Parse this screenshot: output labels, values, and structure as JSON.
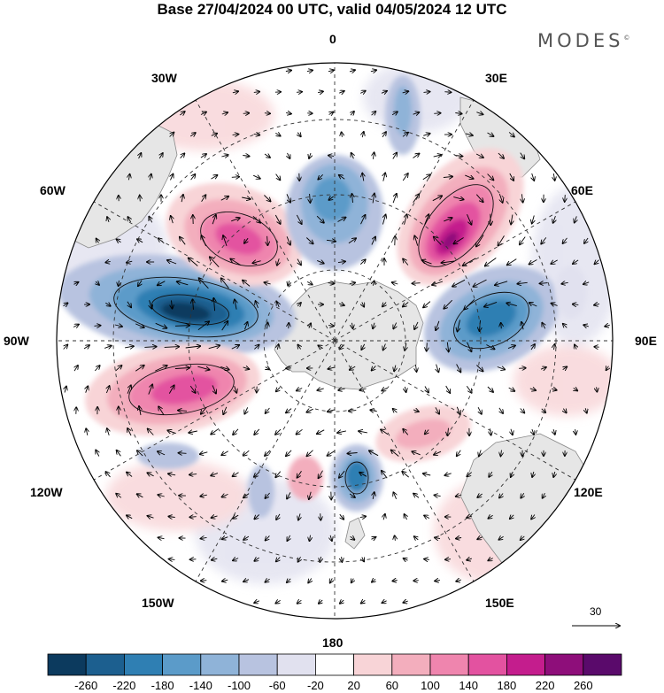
{
  "title": "Base 27/04/2024 00 UTC, valid 04/05/2024 12 UTC",
  "brand": "MODES",
  "brand_mark": "©",
  "map": {
    "projection": "polar-stereographic-south",
    "meridian_labels": {
      "m0": "0",
      "m30e": "30E",
      "m60e": "60E",
      "m90e": "90E",
      "m120e": "120E",
      "m150e": "150E",
      "m180": "180",
      "m150w": "150W",
      "m120w": "120W",
      "m90w": "90W",
      "m60w": "60W",
      "m30w": "30W"
    },
    "wind_reference": "30",
    "anomaly_centers": [
      {
        "sign": "negative",
        "peak": -260,
        "lon": "75W"
      },
      {
        "sign": "positive",
        "peak": 180,
        "lon": "45W"
      },
      {
        "sign": "positive",
        "peak": 220,
        "lon": "40E"
      },
      {
        "sign": "negative",
        "peak": -200,
        "lon": "80E"
      },
      {
        "sign": "positive",
        "peak": 180,
        "lon": "110W"
      },
      {
        "sign": "negative",
        "peak": -140,
        "lon": "5E"
      },
      {
        "sign": "negative",
        "peak": -160,
        "lon": "175E"
      },
      {
        "sign": "positive",
        "peak": 80,
        "lon": "125E"
      }
    ]
  },
  "colorbar": {
    "labels": [
      "-260",
      "-220",
      "-180",
      "-140",
      "-100",
      "-60",
      "-20",
      "20",
      "60",
      "100",
      "140",
      "180",
      "220",
      "260"
    ],
    "colors": [
      "#0c3a5e",
      "#1c5f8f",
      "#2f7fb3",
      "#5b9bc9",
      "#8fb3d8",
      "#b8c3e0",
      "#e1e1ef",
      "#ffffff",
      "#f8d4d7",
      "#f3aebd",
      "#ef85ae",
      "#e352a0",
      "#c41d8d",
      "#8e0e7a",
      "#5a0a6b"
    ]
  }
}
